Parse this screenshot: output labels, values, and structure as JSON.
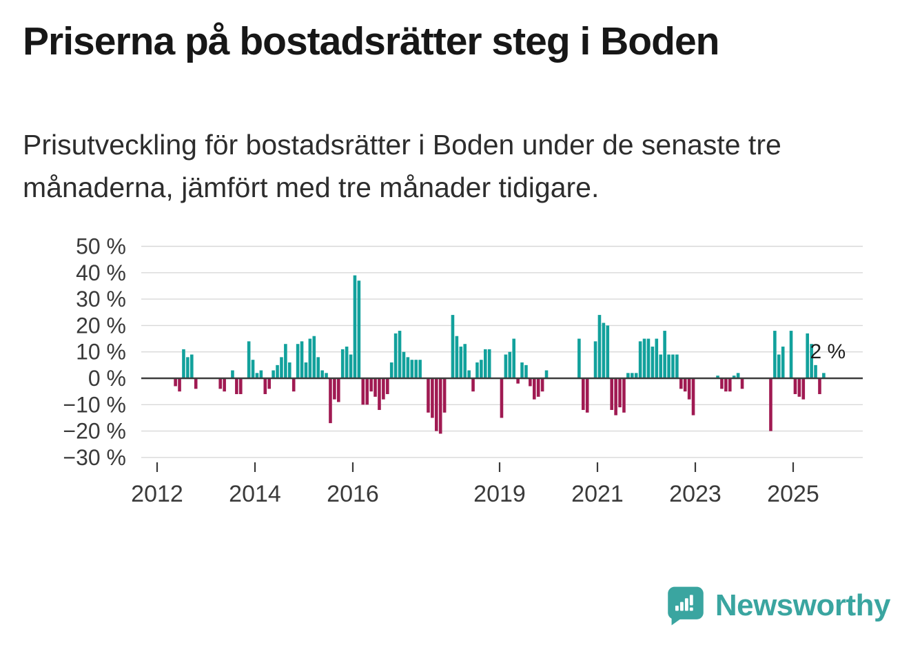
{
  "title": "Priserna på bostadsrätter steg i Boden",
  "subtitle": "Prisutveckling för bostadsrätter i Boden under de senaste tre månaderna, jämfört med tre månader tidigare.",
  "branding": {
    "logo_text": "Newsworthy",
    "brand_color": "#3aa5a0"
  },
  "chart_data": {
    "type": "bar",
    "title": "Priserna på bostadsrätter steg i Boden",
    "subtitle": "Prisutveckling för bostadsrätter i Boden under de senaste tre månaderna, jämfört med tre månader tidigare.",
    "unit": "%",
    "x_start": "2012-01",
    "x_interval": "month",
    "values": [
      null,
      null,
      null,
      null,
      -3,
      -5,
      11,
      8,
      9,
      -4,
      null,
      null,
      null,
      null,
      null,
      -4,
      -5,
      null,
      3,
      -6,
      -6,
      null,
      14,
      7,
      2,
      3,
      -6,
      -4,
      3,
      5,
      8,
      13,
      6,
      -5,
      13,
      14,
      6,
      15,
      16,
      8,
      3,
      2,
      -17,
      -8,
      -9,
      11,
      12,
      9,
      39,
      37,
      -10,
      -10,
      -5,
      -7,
      -12,
      -8,
      -6,
      6,
      17,
      18,
      10,
      8,
      7,
      7,
      7,
      null,
      -13,
      -15,
      -20,
      -21,
      -13,
      null,
      24,
      16,
      12,
      13,
      3,
      -5,
      6,
      7,
      11,
      11,
      null,
      null,
      -15,
      9,
      10,
      15,
      -2,
      6,
      5,
      -3,
      -8,
      -7,
      -5,
      3,
      null,
      null,
      null,
      null,
      null,
      null,
      null,
      15,
      -12,
      -13,
      null,
      14,
      24,
      21,
      20,
      -12,
      -14,
      -11,
      -13,
      2,
      2,
      2,
      14,
      15,
      15,
      12,
      15,
      9,
      18,
      9,
      9,
      9,
      -4,
      -5,
      -8,
      -14,
      null,
      null,
      null,
      null,
      null,
      1,
      -4,
      -5,
      -5,
      1,
      2,
      -4,
      null,
      null,
      null,
      null,
      null,
      null,
      -20,
      18,
      9,
      12,
      null,
      18,
      -6,
      -7,
      -8,
      17,
      13,
      5,
      -6,
      2
    ],
    "ylim": [
      -33,
      55
    ],
    "yticks": [
      50,
      40,
      30,
      20,
      10,
      0,
      -10,
      -20,
      -30
    ],
    "ytick_labels": [
      "50 %",
      "40 %",
      "30 %",
      "20 %",
      "10 %",
      "0 %",
      "−10 %",
      "−20 %",
      "−30 %"
    ],
    "xticks": [
      2012,
      2014,
      2016,
      2019,
      2021,
      2023,
      2025
    ],
    "grid": true,
    "legend": "none",
    "annotation": {
      "text": "2 %",
      "value": 2,
      "applies_to": "latest"
    },
    "colors": {
      "positive": "#12a19c",
      "negative": "#a01a52"
    }
  }
}
